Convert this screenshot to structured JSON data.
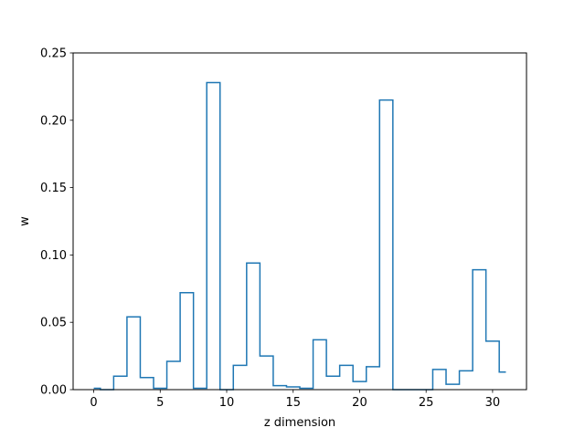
{
  "chart_data": {
    "type": "line",
    "step": "mid",
    "title": "",
    "xlabel": "z dimension",
    "ylabel": "w",
    "xlim": [
      -1.55,
      32.55
    ],
    "ylim": [
      0,
      0.25
    ],
    "xticks": [
      0,
      5,
      10,
      15,
      20,
      25,
      30
    ],
    "yticks": [
      0.0,
      0.05,
      0.1,
      0.15,
      0.2,
      0.25
    ],
    "xtick_labels": [
      "0",
      "5",
      "10",
      "15",
      "20",
      "25",
      "30"
    ],
    "ytick_labels": [
      "0.00",
      "0.05",
      "0.10",
      "0.15",
      "0.20",
      "0.25"
    ],
    "grid": false,
    "legend": null,
    "color": "#1f77b4",
    "series": [
      {
        "x": [
          0,
          1,
          2,
          3,
          4,
          5,
          6,
          7,
          8,
          9,
          10,
          11,
          12,
          13,
          14,
          15,
          16,
          17,
          18,
          19,
          20,
          21,
          22,
          23,
          24,
          25,
          26,
          27,
          28,
          29,
          30,
          31
        ],
        "values": [
          0.001,
          0.0,
          0.01,
          0.054,
          0.009,
          0.001,
          0.021,
          0.072,
          0.001,
          0.228,
          0.0,
          0.018,
          0.094,
          0.025,
          0.003,
          0.002,
          0.001,
          0.037,
          0.01,
          0.018,
          0.006,
          0.017,
          0.215,
          0.0,
          0.0,
          0.0,
          0.015,
          0.004,
          0.014,
          0.089,
          0.036,
          0.013
        ]
      }
    ]
  }
}
